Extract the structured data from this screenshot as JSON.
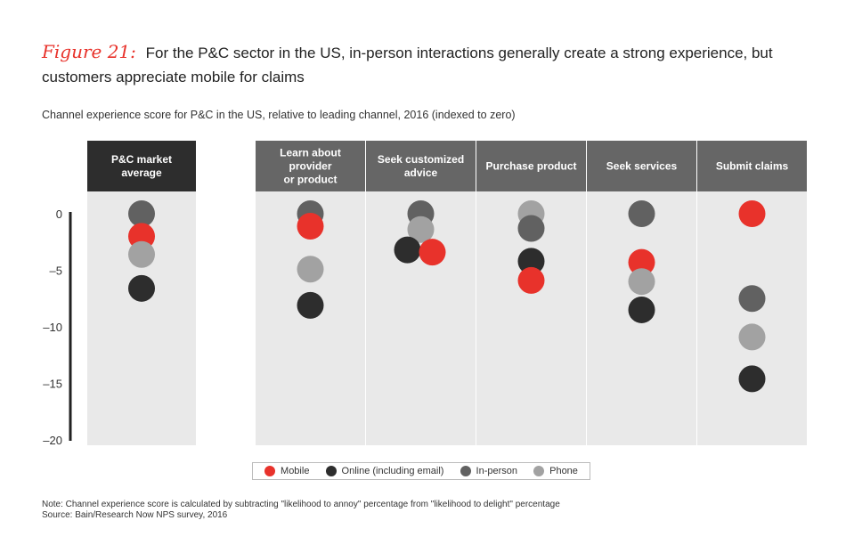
{
  "title": {
    "figure_label": "Figure 21:",
    "text": "For the P&C sector in the US, in-person interactions generally create a strong experience, but customers appreciate mobile for claims"
  },
  "subtitle": "Channel experience score for P&C in the US, relative to leading channel, 2016 (indexed to zero)",
  "note": "Note: Channel experience score is calculated by subtracting \"likelihood to annoy\" percentage from \"likelihood to delight\" percentage",
  "source": "Source: Bain/Research Now NPS survey, 2016",
  "colors": {
    "Mobile": "#e8322b",
    "Online (including email)": "#2d2d2d",
    "In-person": "#616161",
    "Phone": "#a2a2a2"
  },
  "chart_data": {
    "type": "scatter",
    "ylim": [
      -20,
      0
    ],
    "yticks": [
      0,
      -5,
      -10,
      -15,
      -20
    ],
    "yticklabels": [
      "0",
      "–5",
      "–10",
      "–15",
      "–20"
    ],
    "legend": [
      "Mobile",
      "Online (including email)",
      "In-person",
      "Phone"
    ],
    "categories": [
      {
        "label_lines": [
          "P&C market",
          "average"
        ],
        "values": {
          "In-person": 0,
          "Mobile": -2,
          "Phone": -3.6,
          "Online (including email)": -6.6
        }
      },
      {
        "label_lines": [
          "Learn about",
          "provider",
          "or product"
        ],
        "values": {
          "In-person": 0,
          "Mobile": -1.1,
          "Phone": -4.9,
          "Online (including email)": -8.1
        }
      },
      {
        "label_lines": [
          "Seek customized",
          "advice"
        ],
        "values": {
          "In-person": 0,
          "Phone": -1.4,
          "Online (including email)": -3.2,
          "Mobile": -3.4
        }
      },
      {
        "label_lines": [
          "Purchase product"
        ],
        "values": {
          "Phone": 0,
          "In-person": -1.3,
          "Online (including email)": -4.2,
          "Mobile": -5.9
        }
      },
      {
        "label_lines": [
          "Seek services"
        ],
        "values": {
          "In-person": 0,
          "Mobile": -4.3,
          "Phone": -6,
          "Online (including email)": -8.5
        }
      },
      {
        "label_lines": [
          "Submit claims"
        ],
        "values": {
          "Mobile": 0,
          "In-person": -7.5,
          "Phone": -10.9,
          "Online (including email)": -14.6
        }
      }
    ]
  }
}
